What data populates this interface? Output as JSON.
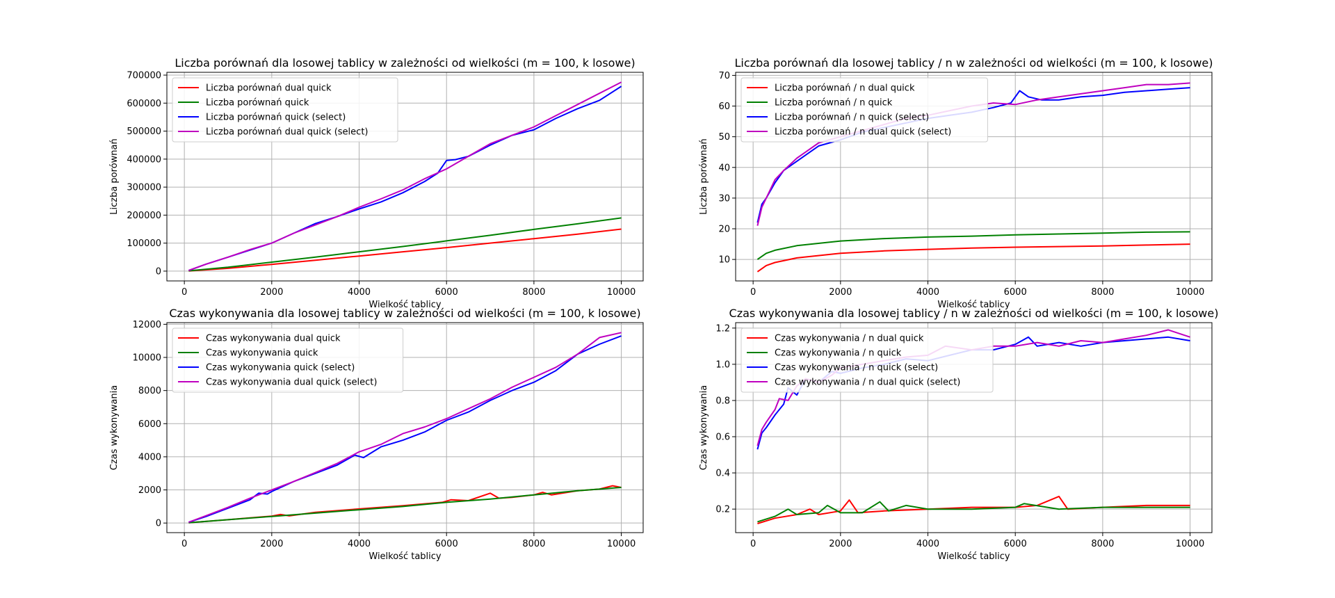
{
  "figure": {
    "background": "#ffffff"
  },
  "colors": {
    "red": "#ff0000",
    "green": "#008000",
    "blue": "#0000ff",
    "magenta": "#bf00bf",
    "grid": "#b0b0b0"
  },
  "chart_data": [
    {
      "type": "line",
      "title": "Liczba porównań dla losowej tablicy w zależności od wielkości (m = 100, k losowe)",
      "xlabel": "Wielkość tablicy",
      "ylabel": "Liczba porównań",
      "xlim": [
        -400,
        10500
      ],
      "ylim": [
        -35000,
        710000
      ],
      "xticks": [
        0,
        2000,
        4000,
        6000,
        8000,
        10000
      ],
      "xtick_labels": [
        "0",
        "2000",
        "4000",
        "6000",
        "8000",
        "10000"
      ],
      "yticks": [
        0,
        100000,
        200000,
        300000,
        400000,
        500000,
        600000,
        700000
      ],
      "ytick_labels": [
        "0",
        "100000",
        "200000",
        "300000",
        "400000",
        "500000",
        "600000",
        "700000"
      ],
      "grid": true,
      "legend": "upper left",
      "series": [
        {
          "name": "Liczba porównań dual quick",
          "color": "#ff0000",
          "x": [
            100,
            1000,
            2000,
            3000,
            4000,
            5000,
            6000,
            7000,
            8000,
            9000,
            10000
          ],
          "y": [
            600,
            10000,
            24000,
            39000,
            54000,
            69000,
            84000,
            100000,
            116000,
            132000,
            150000
          ]
        },
        {
          "name": "Liczba porównań quick",
          "color": "#008000",
          "x": [
            100,
            1000,
            2000,
            3000,
            4000,
            5000,
            6000,
            7000,
            8000,
            9000,
            10000
          ],
          "y": [
            1000,
            14000,
            32000,
            50000,
            69000,
            88000,
            108000,
            128000,
            149000,
            169000,
            190000
          ]
        },
        {
          "name": "Liczba porównań quick (select)",
          "color": "#0000ff",
          "x": [
            100,
            500,
            1000,
            1500,
            2000,
            2500,
            3000,
            3500,
            4000,
            4500,
            5000,
            5500,
            5800,
            6000,
            6200,
            6500,
            7000,
            7500,
            8000,
            8500,
            9000,
            9500,
            10000
          ],
          "y": [
            2500,
            25000,
            50000,
            75000,
            100000,
            135000,
            170000,
            195000,
            222000,
            247000,
            280000,
            320000,
            350000,
            395000,
            398000,
            410000,
            450000,
            485000,
            505000,
            545000,
            580000,
            610000,
            660000
          ]
        },
        {
          "name": "Liczba porównań dual quick (select)",
          "color": "#bf00bf",
          "x": [
            100,
            500,
            1000,
            1500,
            2000,
            2500,
            3000,
            3500,
            4000,
            4500,
            5000,
            5500,
            6000,
            6500,
            7000,
            7500,
            8000,
            8500,
            9000,
            9500,
            10000
          ],
          "y": [
            2500,
            25000,
            50000,
            77000,
            100000,
            135000,
            165000,
            195000,
            228000,
            258000,
            290000,
            330000,
            365000,
            410000,
            455000,
            485000,
            515000,
            555000,
            595000,
            635000,
            675000
          ]
        }
      ]
    },
    {
      "type": "line",
      "title": "Liczba porównań dla losowej tablicy / n w zależności od wielkości (m = 100, k losowe)",
      "xlabel": "Wielkość tablicy",
      "ylabel": "Liczba porównań",
      "xlim": [
        -400,
        10500
      ],
      "ylim": [
        3,
        71
      ],
      "xticks": [
        0,
        2000,
        4000,
        6000,
        8000,
        10000
      ],
      "xtick_labels": [
        "0",
        "2000",
        "4000",
        "6000",
        "8000",
        "10000"
      ],
      "yticks": [
        10,
        20,
        30,
        40,
        50,
        60,
        70
      ],
      "ytick_labels": [
        "10",
        "20",
        "30",
        "40",
        "50",
        "60",
        "70"
      ],
      "grid": true,
      "legend": "upper left",
      "series": [
        {
          "name": "Liczba porównań / n dual quick",
          "color": "#ff0000",
          "x": [
            100,
            300,
            500,
            1000,
            2000,
            3000,
            4000,
            5000,
            6000,
            7000,
            8000,
            9000,
            10000
          ],
          "y": [
            6,
            8,
            9,
            10.5,
            12,
            12.8,
            13.3,
            13.7,
            14,
            14.2,
            14.4,
            14.7,
            15
          ]
        },
        {
          "name": "Liczba porównań / n quick",
          "color": "#008000",
          "x": [
            100,
            300,
            500,
            1000,
            2000,
            3000,
            4000,
            5000,
            6000,
            7000,
            8000,
            9000,
            10000
          ],
          "y": [
            10,
            12,
            13,
            14.5,
            16,
            16.8,
            17.3,
            17.6,
            18,
            18.3,
            18.6,
            18.9,
            19
          ]
        },
        {
          "name": "Liczba porównań / n quick (select)",
          "color": "#0000ff",
          "x": [
            100,
            200,
            300,
            500,
            700,
            1000,
            1200,
            1500,
            2000,
            2500,
            3000,
            3500,
            4000,
            4500,
            5000,
            5500,
            5900,
            6100,
            6300,
            6600,
            7000,
            7500,
            8000,
            8500,
            9000,
            9500,
            10000
          ],
          "y": [
            22,
            28,
            30,
            35,
            39,
            42,
            44,
            47,
            49,
            51.5,
            53,
            54.5,
            56,
            57,
            58,
            59.5,
            61,
            65,
            63,
            62,
            62,
            63,
            63.5,
            64.5,
            65,
            65.5,
            66
          ]
        },
        {
          "name": "Liczba porównań / n dual quick (select)",
          "color": "#bf00bf",
          "x": [
            100,
            200,
            300,
            500,
            700,
            1000,
            1200,
            1500,
            2000,
            2500,
            3000,
            3500,
            4000,
            4500,
            5000,
            5500,
            6000,
            6500,
            7000,
            7500,
            8000,
            8500,
            9000,
            9500,
            10000
          ],
          "y": [
            21,
            27,
            30,
            36,
            39,
            43,
            45,
            48,
            50,
            52,
            54,
            56,
            57,
            58.5,
            60,
            61,
            60.5,
            62,
            63,
            64,
            65,
            66,
            67,
            67,
            67.5
          ]
        }
      ]
    },
    {
      "type": "line",
      "title": "Czas wykonywania dla losowej tablicy w zależności od wielkości (m = 100, k losowe)",
      "xlabel": "Wielkość tablicy",
      "ylabel": "Czas wykonywania",
      "xlim": [
        -400,
        10500
      ],
      "ylim": [
        -580,
        12100
      ],
      "xticks": [
        0,
        2000,
        4000,
        6000,
        8000,
        10000
      ],
      "xtick_labels": [
        "0",
        "2000",
        "4000",
        "6000",
        "8000",
        "10000"
      ],
      "yticks": [
        0,
        2000,
        4000,
        6000,
        8000,
        10000,
        12000
      ],
      "ytick_labels": [
        "0",
        "2000",
        "4000",
        "6000",
        "8000",
        "10000",
        "12000"
      ],
      "grid": true,
      "legend": "upper left",
      "series": [
        {
          "name": "Czas wykonywania dual quick",
          "color": "#ff0000",
          "x": [
            100,
            1000,
            2000,
            2200,
            2400,
            3000,
            4000,
            5000,
            5900,
            6100,
            6500,
            7000,
            7200,
            7500,
            8000,
            8200,
            8400,
            9000,
            9500,
            9800,
            10000
          ],
          "y": [
            20,
            200,
            420,
            520,
            430,
            650,
            850,
            1050,
            1250,
            1400,
            1350,
            1800,
            1500,
            1550,
            1700,
            1850,
            1700,
            1950,
            2050,
            2250,
            2150
          ]
        },
        {
          "name": "Czas wykonywania quick",
          "color": "#008000",
          "x": [
            100,
            1000,
            2000,
            3000,
            4000,
            5000,
            6000,
            7000,
            8000,
            9000,
            10000
          ],
          "y": [
            20,
            200,
            400,
            600,
            800,
            1000,
            1250,
            1450,
            1700,
            1950,
            2150
          ]
        },
        {
          "name": "Czas wykonywania quick (select)",
          "color": "#0000ff",
          "x": [
            100,
            500,
            1000,
            1500,
            1700,
            1900,
            2000,
            2500,
            3000,
            3500,
            3900,
            4100,
            4500,
            5000,
            5500,
            6000,
            6500,
            7000,
            7500,
            8000,
            8500,
            9000,
            9500,
            10000
          ],
          "y": [
            50,
            400,
            900,
            1400,
            1800,
            1750,
            1900,
            2500,
            3000,
            3500,
            4100,
            3950,
            4600,
            5000,
            5500,
            6200,
            6700,
            7400,
            8000,
            8500,
            9200,
            10200,
            10800,
            11300
          ]
        },
        {
          "name": "Czas wykonywania dual quick (select)",
          "color": "#bf00bf",
          "x": [
            100,
            500,
            1000,
            1500,
            2000,
            2500,
            3000,
            3500,
            4000,
            4500,
            5000,
            5500,
            6000,
            6500,
            7000,
            7500,
            8000,
            8500,
            9000,
            9500,
            10000
          ],
          "y": [
            50,
            450,
            950,
            1500,
            2000,
            2500,
            3050,
            3600,
            4300,
            4750,
            5400,
            5800,
            6300,
            6900,
            7500,
            8200,
            8800,
            9400,
            10200,
            11200,
            11500
          ]
        }
      ]
    },
    {
      "type": "line",
      "title": "Czas wykonywania dla losowej tablicy / n w zależności od wielkości (m = 100, k losowe)",
      "xlabel": "Wielkość tablicy",
      "ylabel": "Czas wykonywania",
      "xlim": [
        -400,
        10500
      ],
      "ylim": [
        0.07,
        1.23
      ],
      "xticks": [
        0,
        2000,
        4000,
        6000,
        8000,
        10000
      ],
      "xtick_labels": [
        "0",
        "2000",
        "4000",
        "6000",
        "8000",
        "10000"
      ],
      "yticks": [
        0.2,
        0.4,
        0.6,
        0.8,
        1.0,
        1.2
      ],
      "ytick_labels": [
        "0.2",
        "0.4",
        "0.6",
        "0.8",
        "1.0",
        "1.2"
      ],
      "grid": true,
      "legend": "upper left",
      "series": [
        {
          "name": "Czas wykonywania / n dual quick",
          "color": "#ff0000",
          "x": [
            100,
            500,
            1000,
            1300,
            1500,
            2000,
            2200,
            2400,
            3000,
            4000,
            5000,
            6000,
            6500,
            7000,
            7200,
            8000,
            9000,
            10000
          ],
          "y": [
            0.12,
            0.15,
            0.17,
            0.2,
            0.17,
            0.19,
            0.25,
            0.18,
            0.19,
            0.2,
            0.21,
            0.21,
            0.22,
            0.27,
            0.2,
            0.21,
            0.22,
            0.22
          ]
        },
        {
          "name": "Czas wykonywania / n quick",
          "color": "#008000",
          "x": [
            100,
            500,
            800,
            1000,
            1500,
            1700,
            2000,
            2500,
            2900,
            3100,
            3500,
            4000,
            5000,
            6000,
            6200,
            7000,
            8000,
            9000,
            10000
          ],
          "y": [
            0.13,
            0.16,
            0.2,
            0.17,
            0.18,
            0.22,
            0.18,
            0.18,
            0.24,
            0.19,
            0.22,
            0.2,
            0.2,
            0.21,
            0.23,
            0.2,
            0.21,
            0.21,
            0.21
          ]
        },
        {
          "name": "Czas wykonywania / n quick (select)",
          "color": "#0000ff",
          "x": [
            100,
            200,
            300,
            500,
            700,
            800,
            1000,
            1200,
            1500,
            1800,
            2000,
            2500,
            3000,
            3500,
            4000,
            4500,
            5000,
            5500,
            6000,
            6300,
            6500,
            7000,
            7500,
            8000,
            8500,
            9000,
            9500,
            10000
          ],
          "y": [
            0.53,
            0.62,
            0.65,
            0.72,
            0.78,
            0.87,
            0.83,
            0.92,
            0.9,
            0.96,
            0.95,
            0.98,
            1.0,
            1.03,
            1.02,
            1.05,
            1.08,
            1.08,
            1.11,
            1.15,
            1.1,
            1.12,
            1.1,
            1.12,
            1.13,
            1.14,
            1.15,
            1.13
          ]
        },
        {
          "name": "Czas wykonywania / n dual quick (select)",
          "color": "#bf00bf",
          "x": [
            100,
            200,
            300,
            500,
            600,
            800,
            1000,
            1200,
            1500,
            1800,
            2000,
            2500,
            3000,
            3500,
            4000,
            4400,
            5000,
            5500,
            6000,
            6500,
            7000,
            7500,
            8000,
            8500,
            9000,
            9500,
            10000
          ],
          "y": [
            0.55,
            0.64,
            0.68,
            0.75,
            0.81,
            0.8,
            0.88,
            0.92,
            0.9,
            0.94,
            0.98,
            1.0,
            1.02,
            1.04,
            1.05,
            1.1,
            1.08,
            1.1,
            1.1,
            1.12,
            1.1,
            1.13,
            1.12,
            1.14,
            1.16,
            1.19,
            1.15
          ]
        }
      ]
    }
  ]
}
